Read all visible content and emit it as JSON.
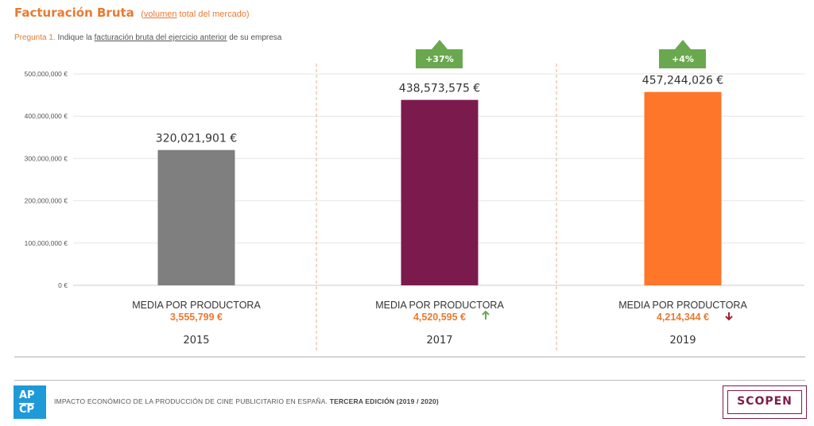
{
  "header": {
    "title": "Facturación Bruta",
    "subtitle_open": "(",
    "subtitle_link": "volumen",
    "subtitle_rest": " total del mercado)"
  },
  "question": {
    "number": "Pregunta 1.",
    "text_before": " Indique la ",
    "link": "facturación bruta del ejercicio anterior",
    "text_after": " de su empresa"
  },
  "chart_data": {
    "type": "bar",
    "categories": [
      "2015",
      "2017",
      "2019"
    ],
    "values": [
      320021901,
      438573575,
      457244026
    ],
    "value_labels": [
      "320,021,901 €",
      "438,573,575 €",
      "457,244,026 €"
    ],
    "colors": [
      "#7f7f7f",
      "#7b1b4d",
      "#fd762a"
    ],
    "ylim": [
      0,
      500000000
    ],
    "yticks": [
      0,
      100000000,
      200000000,
      300000000,
      400000000,
      500000000
    ],
    "ytick_labels": [
      "0 €",
      "100,000,000 €",
      "200,000,000 €",
      "300,000,000 €",
      "400,000,000 €",
      "500,000,000 €"
    ],
    "grid": true,
    "changes": [
      null,
      "+37%",
      "+4%"
    ],
    "media_label": "MEDIA POR PRODUCTORA",
    "media_values": [
      "3,555,799 €",
      "4,520,595 €",
      "4,214,344 €"
    ],
    "media_trend": [
      null,
      "up",
      "down"
    ],
    "trend_colors": {
      "up": "#6aa84f",
      "down": "#a51c30"
    },
    "change_color": "#6aa84f"
  },
  "footer": {
    "logo_top": "AP",
    "logo_bottom": "CP",
    "text_normal": "IMPACTO ECONÓMICO DE LA PRODUCCIÓN DE CINE PUBLICITARIO EN ESPAÑA. ",
    "text_bold": "TERCERA EDICIÓN (2019 / 2020)",
    "brand": "SCOPEN"
  }
}
